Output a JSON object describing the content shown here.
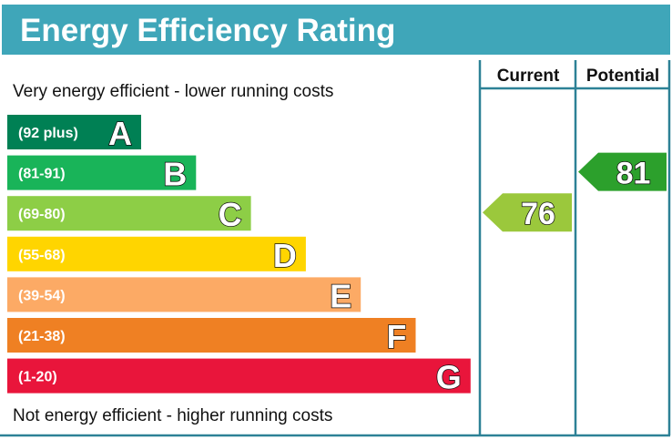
{
  "chart_data": {
    "type": "bar",
    "title": "Energy Efficiency Rating",
    "top_note": "Very energy efficient - lower running costs",
    "bottom_note": "Not energy efficient - higher running costs",
    "columns": [
      "Current",
      "Potential"
    ],
    "bands": [
      {
        "letter": "A",
        "range": "(92 plus)",
        "color": "#008054"
      },
      {
        "letter": "B",
        "range": "(81-91)",
        "color": "#19b459"
      },
      {
        "letter": "C",
        "range": "(69-80)",
        "color": "#8dce46"
      },
      {
        "letter": "D",
        "range": "(55-68)",
        "color": "#ffd500"
      },
      {
        "letter": "E",
        "range": "(39-54)",
        "color": "#fcaa65"
      },
      {
        "letter": "F",
        "range": "(21-38)",
        "color": "#ef8023"
      },
      {
        "letter": "G",
        "range": "(1-20)",
        "color": "#e9153b"
      }
    ],
    "current": {
      "value": "76",
      "band": "C",
      "color": "#9bc83c"
    },
    "potential": {
      "value": "81",
      "band": "B",
      "color": "#2ca02c"
    },
    "accent_color": "#3fa6b9"
  }
}
